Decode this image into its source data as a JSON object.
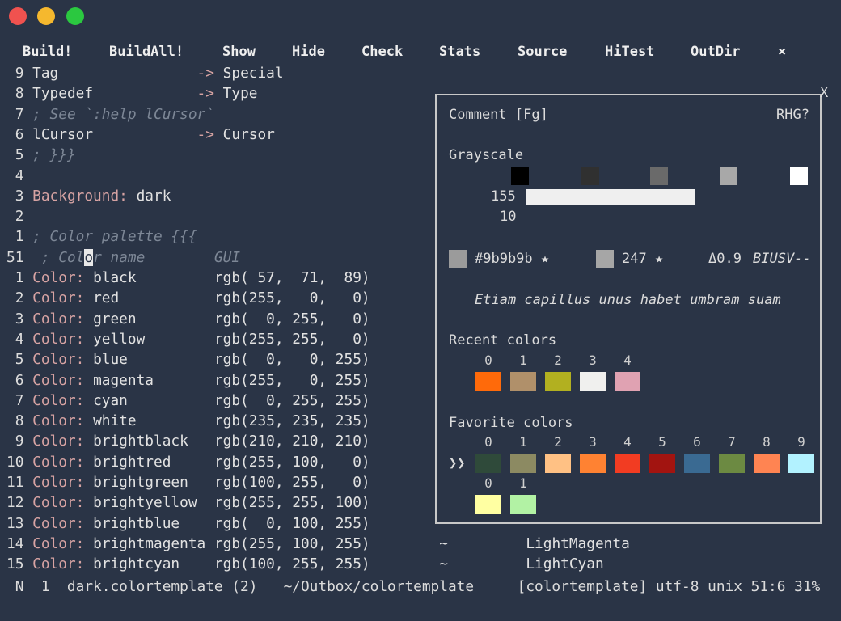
{
  "window": {
    "traffic_lights": [
      "#f0524f",
      "#f5b82e",
      "#2bc840"
    ]
  },
  "menu": [
    "Build!",
    "BuildAll!",
    "Show",
    "Hide",
    "Check",
    "Stats",
    "Source",
    "HiTest",
    "OutDir",
    "×"
  ],
  "editor": {
    "lines": [
      {
        "num": " 9 ",
        "segs": [
          [
            "Tag                ",
            "tx"
          ],
          [
            "-> ",
            "ar"
          ],
          [
            "Special",
            "tx"
          ]
        ]
      },
      {
        "num": " 8 ",
        "segs": [
          [
            "Typedef            ",
            "tx"
          ],
          [
            "-> ",
            "ar"
          ],
          [
            "Type",
            "tx"
          ]
        ]
      },
      {
        "num": " 7 ",
        "segs": [
          [
            "; See `:help lCursor`",
            "cm"
          ]
        ]
      },
      {
        "num": " 6 ",
        "segs": [
          [
            "lCursor            ",
            "tx"
          ],
          [
            "-> ",
            "ar"
          ],
          [
            "Cursor",
            "tx"
          ]
        ]
      },
      {
        "num": " 5 ",
        "segs": [
          [
            "; }}}",
            "cm"
          ]
        ]
      },
      {
        "num": " 4 ",
        "segs": []
      },
      {
        "num": " 3 ",
        "segs": [
          [
            "Background:",
            "kw"
          ],
          [
            " dark",
            "tx"
          ]
        ]
      },
      {
        "num": " 2 ",
        "segs": []
      },
      {
        "num": " 1 ",
        "segs": [
          [
            "; Color palette {{{",
            "cm"
          ]
        ]
      },
      {
        "num": "51  ",
        "current": true,
        "segs": [
          [
            "; Col",
            "cm"
          ],
          [
            "o",
            "cursor"
          ],
          [
            "r name",
            "cm"
          ],
          [
            "        GUI",
            "cm"
          ]
        ]
      },
      {
        "num": " 1 ",
        "segs": [
          [
            "Color:",
            "kw"
          ],
          [
            " black         rgb( 57,  71,  89)",
            "tx"
          ]
        ]
      },
      {
        "num": " 2 ",
        "segs": [
          [
            "Color:",
            "kw"
          ],
          [
            " red           rgb(255,   0,   0)",
            "tx"
          ]
        ]
      },
      {
        "num": " 3 ",
        "segs": [
          [
            "Color:",
            "kw"
          ],
          [
            " green         rgb(  0, 255,   0)",
            "tx"
          ]
        ]
      },
      {
        "num": " 4 ",
        "segs": [
          [
            "Color:",
            "kw"
          ],
          [
            " yellow        rgb(255, 255,   0)",
            "tx"
          ]
        ]
      },
      {
        "num": " 5 ",
        "segs": [
          [
            "Color:",
            "kw"
          ],
          [
            " blue          rgb(  0,   0, 255)",
            "tx"
          ]
        ]
      },
      {
        "num": " 6 ",
        "segs": [
          [
            "Color:",
            "kw"
          ],
          [
            " magenta       rgb(255,   0, 255)",
            "tx"
          ]
        ]
      },
      {
        "num": " 7 ",
        "segs": [
          [
            "Color:",
            "kw"
          ],
          [
            " cyan          rgb(  0, 255, 255)",
            "tx"
          ]
        ]
      },
      {
        "num": " 8 ",
        "segs": [
          [
            "Color:",
            "kw"
          ],
          [
            " white         rgb(235, 235, 235)",
            "tx"
          ]
        ]
      },
      {
        "num": " 9 ",
        "segs": [
          [
            "Color:",
            "kw"
          ],
          [
            " brightblack   rgb(210, 210, 210)",
            "tx"
          ]
        ]
      },
      {
        "num": "10 ",
        "segs": [
          [
            "Color:",
            "kw"
          ],
          [
            " brightred     rgb(255, 100,   0)",
            "tx"
          ]
        ]
      },
      {
        "num": "11 ",
        "segs": [
          [
            "Color:",
            "kw"
          ],
          [
            " brightgreen   rgb(100, 255,   0)",
            "tx"
          ]
        ]
      },
      {
        "num": "12 ",
        "segs": [
          [
            "Color:",
            "kw"
          ],
          [
            " brightyellow  rgb(255, 255, 100)",
            "tx"
          ]
        ]
      },
      {
        "num": "13 ",
        "segs": [
          [
            "Color:",
            "kw"
          ],
          [
            " brightblue    rgb(  0, 100, 255)",
            "tx"
          ]
        ]
      },
      {
        "num": "14 ",
        "segs": [
          [
            "Color:",
            "kw"
          ],
          [
            " brightmagenta rgb(255, 100, 255)        ~         LightMagenta",
            "tx"
          ]
        ]
      },
      {
        "num": "15 ",
        "segs": [
          [
            "Color:",
            "kw"
          ],
          [
            " brightcyan    rgb(100, 255, 255)        ~         LightCyan",
            "tx"
          ]
        ]
      }
    ]
  },
  "status": " N  1  dark.colortemplate (2)   ~/Outbox/colortemplate     [colortemplate] utf-8 unix 51:6 31%",
  "popup": {
    "close": "X",
    "title": "Comment [Fg]",
    "mode": "RHG?",
    "grayscale_label": "Grayscale",
    "grayscale_swatches": [
      "#000000",
      "#303030",
      "#6a6a6a",
      "#a8a8a8",
      "#ffffff"
    ],
    "slider_value": "155",
    "slider_fraction": 0.61,
    "step": "10",
    "hex_color": "#9b9b9b",
    "hex_label": "#9b9b9b ★",
    "term_color": "#a6a6a6",
    "term_label": "247 ★",
    "delta": "Δ0.9",
    "attrs": "BIUSV--",
    "sample": "Etiam capillus unus habet umbram suam",
    "recent_label": "Recent colors",
    "recent": [
      {
        "i": "0",
        "c": "#ff6a0a"
      },
      {
        "i": "1",
        "c": "#b0906a"
      },
      {
        "i": "2",
        "c": "#b2b020"
      },
      {
        "i": "3",
        "c": "#f0f0ee"
      },
      {
        "i": "4",
        "c": "#e0a2b2"
      }
    ],
    "favorite_label": "Favorite colors",
    "fav_marker": "❯❯",
    "favorites": [
      {
        "i": "0",
        "c": "#2f4a3a"
      },
      {
        "i": "1",
        "c": "#8c8a62"
      },
      {
        "i": "2",
        "c": "#ffc184"
      },
      {
        "i": "3",
        "c": "#ff8232"
      },
      {
        "i": "4",
        "c": "#f23c22"
      },
      {
        "i": "5",
        "c": "#a21410"
      },
      {
        "i": "6",
        "c": "#3a6a92"
      },
      {
        "i": "7",
        "c": "#6c8a42"
      },
      {
        "i": "8",
        "c": "#ff8452"
      },
      {
        "i": "9",
        "c": "#b2f2ff"
      }
    ],
    "favorites2": [
      {
        "i": "0",
        "c": "#ffffa2"
      },
      {
        "i": "1",
        "c": "#b2f2a4"
      }
    ]
  }
}
